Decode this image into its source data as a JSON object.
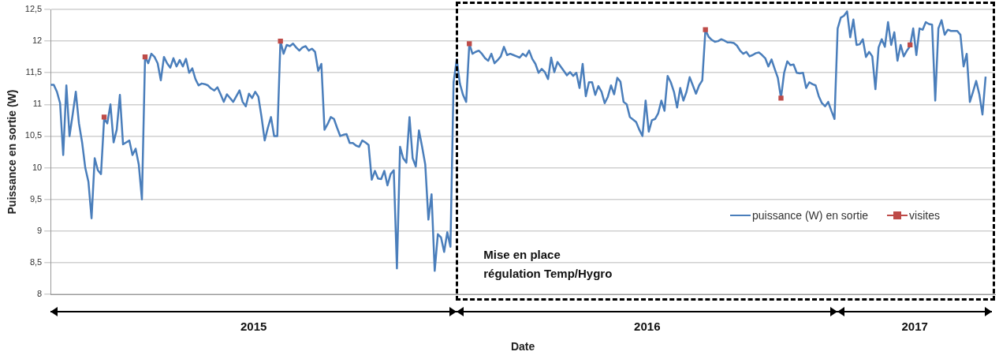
{
  "chart_data": {
    "type": "line",
    "ylabel": "Puissance en sortie (W)",
    "xlabel": "Date",
    "categories": [
      null,
      null,
      null,
      null,
      null,
      null,
      null,
      null,
      null,
      null,
      null,
      null,
      null,
      null,
      null,
      null,
      null,
      null,
      null,
      null,
      null,
      null,
      null,
      null,
      null,
      null,
      null,
      null,
      null,
      null,
      null,
      null,
      null,
      null,
      null,
      null,
      null,
      null,
      null,
      null,
      null,
      null,
      null,
      null,
      null,
      null,
      null,
      null,
      null,
      null,
      null,
      null,
      null,
      null,
      null,
      null,
      null,
      null,
      null,
      null,
      null,
      null,
      null,
      null,
      null,
      null,
      null,
      null,
      null,
      null,
      null,
      null,
      null,
      null,
      null,
      null,
      null,
      null,
      null,
      null,
      null,
      null,
      null,
      null,
      null,
      null,
      null,
      null,
      null,
      null,
      null,
      null,
      null,
      null,
      null,
      null,
      null,
      null,
      null,
      null,
      null,
      null,
      null,
      null,
      null,
      null,
      null,
      null,
      null,
      null,
      null,
      null,
      null,
      null,
      null,
      null,
      null,
      null,
      null,
      null,
      null,
      null,
      null,
      null,
      null,
      null,
      null,
      null,
      null,
      null,
      null,
      null,
      null,
      null,
      null,
      null,
      null,
      null,
      null,
      null,
      null,
      null,
      null,
      null,
      null,
      null,
      null,
      null,
      null,
      null,
      null,
      null,
      null,
      null,
      null,
      null,
      null,
      null,
      null,
      null,
      null,
      null,
      null,
      null,
      null,
      null,
      null,
      null,
      null,
      null,
      null,
      null,
      null,
      null,
      null,
      null,
      null,
      null,
      null,
      null,
      null,
      null,
      null,
      null,
      null,
      null,
      null,
      null,
      null,
      null,
      null,
      null,
      null,
      null,
      null,
      null,
      null,
      null,
      null,
      null,
      null,
      null,
      null,
      null,
      null,
      null,
      null,
      null,
      null,
      null,
      null,
      null,
      null,
      null,
      null,
      null,
      null,
      null,
      null,
      null,
      null,
      null,
      null,
      null,
      null,
      null,
      null,
      null,
      null,
      null,
      null,
      null,
      null,
      null,
      null,
      null,
      null,
      null,
      null,
      null,
      null,
      null,
      null,
      null,
      null,
      null,
      null,
      null,
      null,
      null,
      null,
      null,
      null,
      null,
      null,
      null,
      null,
      null,
      null,
      null,
      null,
      null,
      null,
      null,
      null,
      null,
      null,
      null,
      null,
      null,
      null,
      null,
      null,
      null,
      null,
      null,
      null,
      null,
      null,
      null,
      null,
      null,
      null,
      null,
      null,
      null,
      null,
      null,
      null,
      null,
      null,
      null,
      null,
      null,
      null,
      null,
      null,
      null,
      null,
      null,
      null
    ],
    "series": [
      {
        "name": "puissance (W) en sortie",
        "type": "line",
        "marker": "none",
        "color": "#4a7ebb",
        "values": [
          11.31,
          11.31,
          11.2,
          11.02,
          10.2,
          11.3,
          10.5,
          10.84,
          11.2,
          10.7,
          10.4,
          10.0,
          9.78,
          9.2,
          10.15,
          9.96,
          9.9,
          10.78,
          10.7,
          11.0,
          10.4,
          10.6,
          11.15,
          10.37,
          10.4,
          10.43,
          10.2,
          10.3,
          10.05,
          9.5,
          11.76,
          11.65,
          11.8,
          11.75,
          11.65,
          11.38,
          11.75,
          11.65,
          11.58,
          11.73,
          11.6,
          11.7,
          11.6,
          11.72,
          11.5,
          11.57,
          11.4,
          11.3,
          11.33,
          11.32,
          11.3,
          11.25,
          11.22,
          11.27,
          11.16,
          11.04,
          11.16,
          11.1,
          11.04,
          11.13,
          11.22,
          11.04,
          10.97,
          11.17,
          11.1,
          11.2,
          11.12,
          10.8,
          10.43,
          10.63,
          10.8,
          10.5,
          10.5,
          12.0,
          11.8,
          11.94,
          11.92,
          11.96,
          11.9,
          11.85,
          11.9,
          11.92,
          11.85,
          11.88,
          11.83,
          11.53,
          11.64,
          10.6,
          10.69,
          10.8,
          10.77,
          10.63,
          10.5,
          10.52,
          10.53,
          10.39,
          10.39,
          10.35,
          10.33,
          10.43,
          10.4,
          10.36,
          9.81,
          9.95,
          9.83,
          9.82,
          9.95,
          9.72,
          9.9,
          9.96,
          8.41,
          10.33,
          10.15,
          10.08,
          10.8,
          10.15,
          10.02,
          10.59,
          10.33,
          10.05,
          9.18,
          9.58,
          8.37,
          8.95,
          8.9,
          8.67,
          8.98,
          8.75,
          11.35,
          11.71,
          11.33,
          11.15,
          11.04,
          11.96,
          11.8,
          11.83,
          11.85,
          11.8,
          11.73,
          11.69,
          11.8,
          11.65,
          11.7,
          11.76,
          11.91,
          11.78,
          11.8,
          11.78,
          11.76,
          11.74,
          11.8,
          11.76,
          11.85,
          11.72,
          11.64,
          11.5,
          11.56,
          11.51,
          11.4,
          11.74,
          11.51,
          11.67,
          11.6,
          11.53,
          11.46,
          11.51,
          11.45,
          11.5,
          11.26,
          11.64,
          11.13,
          11.35,
          11.35,
          11.15,
          11.29,
          11.2,
          11.02,
          11.12,
          11.3,
          11.16,
          11.42,
          11.36,
          11.04,
          11.0,
          10.8,
          10.76,
          10.72,
          10.6,
          10.5,
          11.06,
          10.57,
          10.75,
          10.77,
          10.86,
          11.06,
          10.9,
          11.45,
          11.35,
          11.2,
          10.95,
          11.26,
          11.06,
          11.2,
          11.43,
          11.3,
          11.17,
          11.3,
          11.38,
          12.18,
          12.07,
          12.02,
          11.99,
          12.0,
          12.03,
          12.01,
          11.98,
          11.98,
          11.97,
          11.93,
          11.85,
          11.8,
          11.83,
          11.76,
          11.78,
          11.81,
          11.82,
          11.78,
          11.73,
          11.6,
          11.71,
          11.56,
          11.42,
          11.1,
          11.5,
          11.68,
          11.62,
          11.63,
          11.5,
          11.49,
          11.5,
          11.26,
          11.35,
          11.32,
          11.3,
          11.13,
          11.02,
          10.97,
          11.04,
          10.9,
          10.77,
          12.2,
          12.37,
          12.4,
          12.47,
          12.06,
          12.34,
          11.94,
          11.95,
          12.03,
          11.75,
          11.83,
          11.76,
          11.24,
          11.9,
          12.03,
          11.91,
          12.3,
          11.94,
          12.14,
          11.69,
          11.94,
          11.76,
          11.85,
          11.92,
          12.2,
          11.78,
          12.2,
          12.18,
          12.3,
          12.27,
          12.26,
          11.06,
          12.2,
          12.33,
          12.1,
          12.18,
          12.16,
          12.16,
          12.16,
          12.1,
          11.6,
          11.8,
          11.04,
          11.2,
          11.37,
          11.16,
          10.84,
          11.44,
          null,
          null,
          null
        ]
      },
      {
        "name": "visites",
        "type": "scatter",
        "marker": "square",
        "color": "#be4b48",
        "values": [
          null,
          null,
          null,
          null,
          null,
          null,
          null,
          null,
          null,
          null,
          null,
          null,
          null,
          null,
          null,
          null,
          null,
          10.8,
          null,
          null,
          null,
          null,
          null,
          null,
          null,
          null,
          null,
          null,
          null,
          null,
          11.75,
          null,
          null,
          null,
          null,
          null,
          null,
          null,
          null,
          null,
          null,
          null,
          null,
          null,
          null,
          null,
          null,
          null,
          null,
          null,
          null,
          null,
          null,
          null,
          null,
          null,
          null,
          null,
          null,
          null,
          null,
          null,
          null,
          null,
          null,
          null,
          null,
          null,
          null,
          null,
          null,
          null,
          null,
          12.0,
          null,
          null,
          null,
          null,
          null,
          null,
          null,
          null,
          null,
          null,
          null,
          null,
          null,
          null,
          null,
          null,
          null,
          null,
          null,
          null,
          null,
          null,
          null,
          null,
          null,
          null,
          null,
          null,
          null,
          null,
          null,
          null,
          null,
          null,
          null,
          null,
          null,
          null,
          null,
          null,
          null,
          null,
          null,
          null,
          null,
          null,
          null,
          null,
          null,
          null,
          null,
          null,
          null,
          null,
          null,
          null,
          null,
          null,
          null,
          11.96,
          null,
          null,
          null,
          null,
          null,
          null,
          null,
          null,
          null,
          null,
          null,
          null,
          null,
          null,
          null,
          null,
          null,
          null,
          null,
          null,
          null,
          null,
          null,
          null,
          null,
          null,
          null,
          null,
          null,
          null,
          null,
          null,
          null,
          null,
          null,
          null,
          null,
          null,
          null,
          null,
          null,
          null,
          null,
          null,
          null,
          null,
          null,
          null,
          null,
          null,
          null,
          null,
          null,
          null,
          null,
          null,
          null,
          null,
          null,
          null,
          null,
          null,
          null,
          null,
          null,
          null,
          null,
          null,
          null,
          null,
          null,
          null,
          null,
          null,
          12.18,
          null,
          null,
          null,
          null,
          null,
          null,
          null,
          null,
          null,
          null,
          null,
          null,
          null,
          null,
          null,
          null,
          null,
          null,
          null,
          null,
          null,
          null,
          null,
          11.1,
          null,
          null,
          null,
          null,
          null,
          null,
          null,
          null,
          null,
          null,
          null,
          null,
          null,
          null,
          null,
          null,
          null,
          null,
          null,
          null,
          null,
          null,
          null,
          null,
          null,
          null,
          null,
          null,
          null,
          null,
          null,
          null,
          null,
          null,
          null,
          null,
          null,
          null,
          null,
          null,
          11.94,
          null,
          null,
          null,
          null,
          null,
          null,
          null,
          null,
          null,
          null,
          null,
          null,
          null,
          null,
          null,
          null,
          null,
          null,
          null,
          null,
          null,
          null,
          null,
          null,
          null,
          null,
          null
        ]
      }
    ],
    "ylim": [
      8,
      12.5
    ],
    "yticks": [
      8,
      {
        "value": 8.5,
        "label": "8,5"
      },
      9,
      {
        "value": 9.5,
        "label": "9,5"
      },
      10,
      {
        "value": 10.5,
        "label": "10,5"
      },
      11,
      {
        "value": 11.5,
        "label": "11,5"
      },
      12,
      {
        "value": 12.5,
        "label": "12,5"
      }
    ],
    "grid": "y",
    "legend": "bottom right",
    "annotations": [
      "2015",
      "2016",
      "2017",
      "Mise en place\nrégulation Temp/Hygro"
    ]
  }
}
